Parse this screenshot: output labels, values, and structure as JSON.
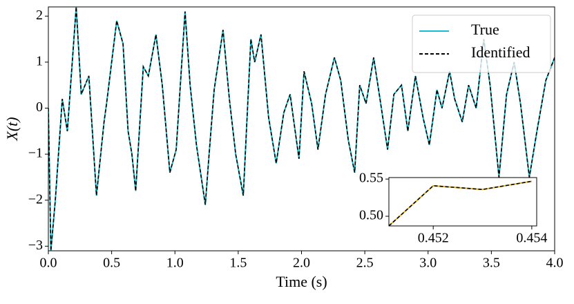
{
  "chart_data": [
    {
      "type": "line",
      "xlabel": "Time (s)",
      "ylabel": "X(t)",
      "x": [
        0,
        0.02,
        0.055,
        0.11,
        0.15,
        0.22,
        0.26,
        0.32,
        0.38,
        0.44,
        0.46,
        0.54,
        0.59,
        0.63,
        0.66,
        0.69,
        0.75,
        0.79,
        0.85,
        0.9,
        0.96,
        1.01,
        1.08,
        1.12,
        1.17,
        1.24,
        1.27,
        1.31,
        1.38,
        1.43,
        1.48,
        1.54,
        1.6,
        1.63,
        1.68,
        1.74,
        1.8,
        1.86,
        1.91,
        1.98,
        2.02,
        2.08,
        2.13,
        2.19,
        2.26,
        2.31,
        2.37,
        2.42,
        2.46,
        2.51,
        2.57,
        2.62,
        2.68,
        2.73,
        2.79,
        2.84,
        2.9,
        2.96,
        3.01,
        3.07,
        3.11,
        3.17,
        3.21,
        3.27,
        3.32,
        3.38,
        3.44,
        3.49,
        3.56,
        3.62,
        3.68,
        3.73,
        3.8,
        3.86,
        3.93,
        4.0
      ],
      "series": [
        {
          "name": "True",
          "color": "#17becf",
          "dash": false,
          "values": [
            0,
            -3.1,
            -2.0,
            0.2,
            -0.5,
            2.2,
            0.3,
            0.7,
            -1.9,
            -0.3,
            0.1,
            1.9,
            1.4,
            -0.5,
            -1.0,
            -1.8,
            0.9,
            0.7,
            1.6,
            0.5,
            -1.4,
            -0.9,
            2.1,
            0.5,
            -0.8,
            -2.1,
            -1.0,
            0.4,
            1.7,
            0.2,
            -1.0,
            -1.9,
            1.5,
            1.0,
            1.6,
            -0.2,
            -1.2,
            -0.1,
            0.3,
            -1.1,
            0.8,
            0.1,
            -0.9,
            0.3,
            1.1,
            0.6,
            -0.7,
            -1.4,
            0.5,
            0.1,
            1.1,
            0.2,
            -0.9,
            0.3,
            0.5,
            -0.5,
            0.7,
            -0.2,
            -0.8,
            0.4,
            0.0,
            0.8,
            0.2,
            -0.3,
            0.5,
            0.0,
            1.5,
            0.5,
            -1.5,
            0.3,
            1.0,
            0.1,
            -1.5,
            -0.5,
            0.6,
            1.1
          ]
        },
        {
          "name": "Identified",
          "color": "#000000",
          "dash": true,
          "values": [
            0,
            -3.1,
            -2.0,
            0.2,
            -0.5,
            2.2,
            0.3,
            0.7,
            -1.9,
            -0.3,
            0.1,
            1.9,
            1.4,
            -0.5,
            -1.0,
            -1.8,
            0.9,
            0.7,
            1.6,
            0.5,
            -1.4,
            -0.9,
            2.1,
            0.5,
            -0.8,
            -2.1,
            -1.0,
            0.4,
            1.7,
            0.2,
            -1.0,
            -1.9,
            1.5,
            1.0,
            1.6,
            -0.2,
            -1.2,
            -0.1,
            0.3,
            -1.1,
            0.8,
            0.1,
            -0.9,
            0.3,
            1.1,
            0.6,
            -0.7,
            -1.4,
            0.5,
            0.1,
            1.1,
            0.2,
            -0.9,
            0.3,
            0.5,
            -0.5,
            0.7,
            -0.2,
            -0.8,
            0.4,
            0.0,
            0.8,
            0.2,
            -0.3,
            0.5,
            0.0,
            1.5,
            0.5,
            -1.5,
            0.3,
            1.0,
            0.1,
            -1.5,
            -0.5,
            0.6,
            1.1
          ]
        }
      ],
      "xlim": [
        0,
        4.0
      ],
      "ylim": [
        -3.1,
        2.2
      ],
      "xticks": [
        {
          "value": 0,
          "label": "0.0"
        },
        {
          "value": 0.5,
          "label": "0.5"
        },
        {
          "value": 1.0,
          "label": "1.0"
        },
        {
          "value": 1.5,
          "label": "1.5"
        },
        {
          "value": 2.0,
          "label": "2.0"
        },
        {
          "value": 2.5,
          "label": "2.5"
        },
        {
          "value": 3.0,
          "label": "3.0"
        },
        {
          "value": 3.5,
          "label": "3.5"
        },
        {
          "value": 4.0,
          "label": "4.0"
        }
      ],
      "yticks": [
        {
          "value": -3,
          "label": "−3"
        },
        {
          "value": -2,
          "label": "−2"
        },
        {
          "value": -1,
          "label": "−1"
        },
        0,
        1,
        2
      ],
      "legend": "upper right"
    },
    {
      "type": "line",
      "x": [
        0.4511,
        0.452,
        0.453,
        0.454
      ],
      "series": [
        {
          "color": "#e6b422",
          "dash": false,
          "values": [
            0.487,
            0.541,
            0.536,
            0.547
          ]
        },
        {
          "color": "#000000",
          "dash": true,
          "values": [
            0.487,
            0.541,
            0.536,
            0.547
          ]
        }
      ],
      "xlim": [
        0.4511,
        0.4541
      ],
      "ylim": [
        0.487,
        0.552
      ],
      "xticks": [
        0.452,
        0.454
      ],
      "yticks": [
        {
          "value": 0.5,
          "label": "0.50"
        },
        0.55
      ]
    }
  ]
}
